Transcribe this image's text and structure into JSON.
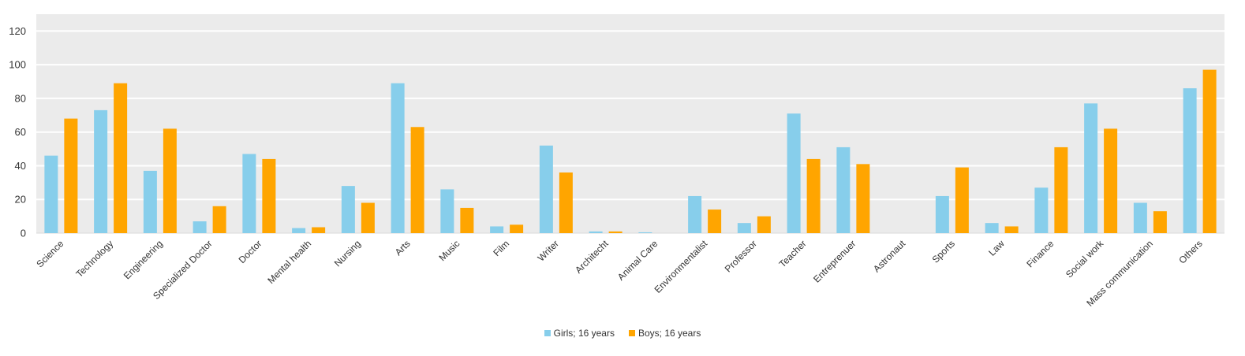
{
  "chart_data": {
    "type": "bar",
    "categories": [
      "Science",
      "Technology",
      "Engineering",
      "Specialized Doctor",
      "Doctor",
      "Mental health",
      "Nursing",
      "Arts",
      "Music",
      "Film",
      "Writer",
      "Architecht",
      "Animal Care",
      "Environmentalist",
      "Professor",
      "Teacher",
      "Entreprenuer",
      "Astronaut",
      "Sports",
      "Law",
      "Finance",
      "Social work",
      "Mass communication",
      "Others"
    ],
    "series": [
      {
        "name": "Girls; 16 years",
        "color": "#87CEEB",
        "values": [
          46,
          73,
          37,
          7,
          47,
          3,
          28,
          89,
          26,
          4,
          52,
          1,
          0.5,
          22,
          6,
          71,
          51,
          0,
          22,
          6,
          27,
          77,
          18,
          86
        ]
      },
      {
        "name": "Boys; 16 years",
        "color": "#FFA500",
        "values": [
          68,
          89,
          62,
          16,
          44,
          3.5,
          18,
          63,
          15,
          5,
          36,
          1,
          0,
          14,
          10,
          44,
          41,
          0,
          39,
          4,
          51,
          62,
          13,
          97
        ]
      }
    ],
    "yticks": [
      0,
      20,
      40,
      60,
      80,
      100,
      120
    ],
    "ylim": [
      0,
      130
    ],
    "grid": true,
    "legend": "bottom-center",
    "plot_background": "#EBEBEB"
  }
}
